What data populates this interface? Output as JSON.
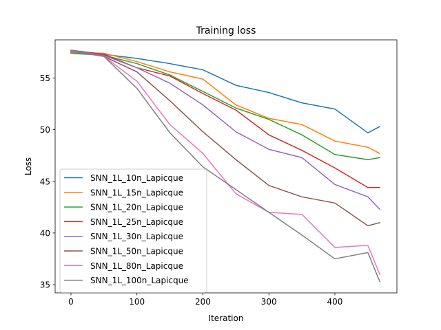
{
  "chart_data": {
    "type": "line",
    "title": "Training loss",
    "xlabel": "Iteration",
    "ylabel": "Loss",
    "xlim": [
      -24,
      494
    ],
    "ylim": [
      34.2,
      58.7
    ],
    "xticks": [
      0,
      100,
      200,
      300,
      400
    ],
    "yticks": [
      35,
      40,
      45,
      50,
      55
    ],
    "grid": false,
    "legend_position": "lower-left",
    "x": [
      0,
      50,
      100,
      150,
      200,
      250,
      300,
      350,
      400,
      450,
      468
    ],
    "series": [
      {
        "name": "SNN_1L_10n_Lapicque",
        "color": "#1f77b4",
        "values": [
          57.5,
          57.3,
          56.9,
          56.4,
          55.8,
          54.3,
          53.6,
          52.6,
          52.0,
          49.7,
          50.3
        ]
      },
      {
        "name": "SNN_1L_15n_Lapicque",
        "color": "#ff7f0e",
        "values": [
          57.5,
          57.4,
          56.6,
          55.6,
          54.9,
          52.4,
          51.1,
          50.5,
          48.9,
          48.3,
          47.7
        ]
      },
      {
        "name": "SNN_1L_20n_Lapicque",
        "color": "#2ca02c",
        "values": [
          57.4,
          57.2,
          56.4,
          55.3,
          53.7,
          52.1,
          51.0,
          49.5,
          47.6,
          47.1,
          47.3
        ]
      },
      {
        "name": "SNN_1L_25n_Lapicque",
        "color": "#d62728",
        "values": [
          57.7,
          57.3,
          56.0,
          55.2,
          53.5,
          51.9,
          49.5,
          48.0,
          46.3,
          44.4,
          44.4
        ]
      },
      {
        "name": "SNN_1L_30n_Lapicque",
        "color": "#9467bd",
        "values": [
          57.7,
          57.2,
          56.0,
          54.5,
          52.4,
          49.8,
          48.1,
          47.3,
          44.7,
          43.5,
          42.3
        ]
      },
      {
        "name": "SNN_1L_50n_Lapicque",
        "color": "#8c564b",
        "values": [
          57.6,
          57.1,
          55.6,
          52.8,
          49.8,
          47.1,
          44.6,
          43.5,
          42.9,
          40.7,
          41.0
        ]
      },
      {
        "name": "SNN_1L_80n_Lapicque",
        "color": "#e377c2",
        "values": [
          57.6,
          57.1,
          54.7,
          50.5,
          47.7,
          43.8,
          42.0,
          41.8,
          38.6,
          38.8,
          36.0
        ]
      },
      {
        "name": "SNN_1L_100n_Lapicque",
        "color": "#7f7f7f",
        "values": [
          57.6,
          57.1,
          54.0,
          49.7,
          46.4,
          44.2,
          42.0,
          39.8,
          37.5,
          38.1,
          35.3
        ]
      }
    ]
  }
}
